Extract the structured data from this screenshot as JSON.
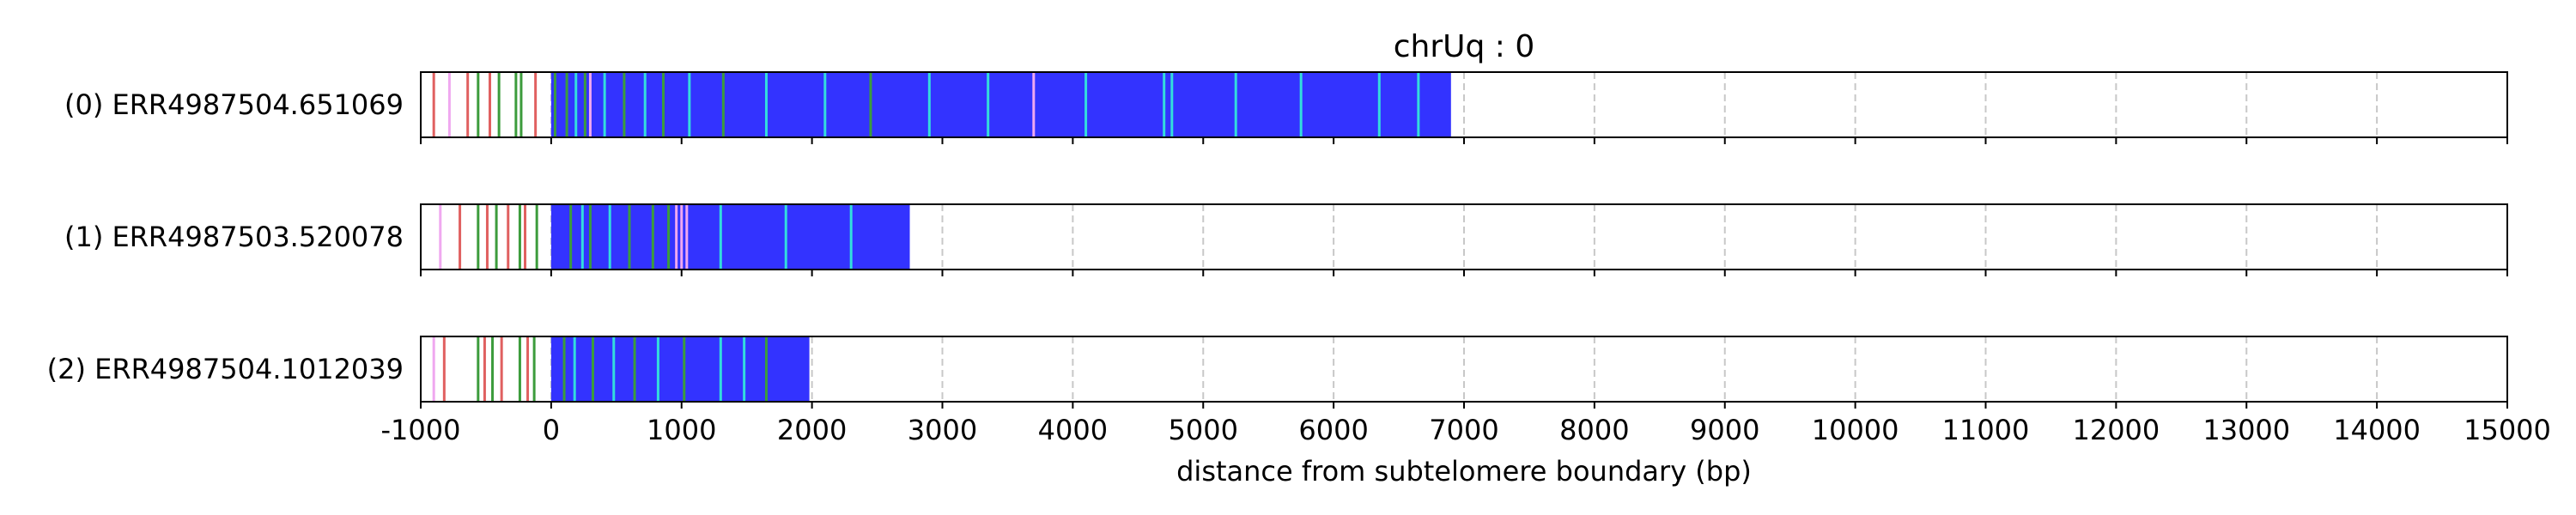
{
  "chart_data": {
    "type": "strip",
    "title": "chrUq : 0",
    "xlabel": "distance from subtelomere boundary (bp)",
    "xlim": [
      -1000,
      15000
    ],
    "x_ticks": [
      -1000,
      0,
      1000,
      2000,
      3000,
      4000,
      5000,
      6000,
      7000,
      8000,
      9000,
      10000,
      11000,
      12000,
      13000,
      14000,
      15000
    ],
    "x_tick_labels": [
      "-1000",
      "0",
      "1000",
      "2000",
      "3000",
      "4000",
      "5000",
      "6000",
      "7000",
      "8000",
      "9000",
      "10000",
      "11000",
      "12000",
      "13000",
      "14000",
      "15000"
    ],
    "grid": "vertical dashed at each x tick",
    "colors": {
      "telomere_repeat": "#3333ff",
      "cyan_variant": "#33dddd",
      "green_variant": "#3c9c3c",
      "red_variant": "#e06060",
      "pink_variant": "#f0a8f0"
    },
    "reads": [
      {
        "label": "(0) ERR4987504.651069",
        "start": 0,
        "end": 6900,
        "marks": [
          {
            "x": -900,
            "color": "#e06060"
          },
          {
            "x": -780,
            "color": "#f0a8f0"
          },
          {
            "x": -640,
            "color": "#e06060"
          },
          {
            "x": -560,
            "color": "#3c9c3c"
          },
          {
            "x": -470,
            "color": "#e06060"
          },
          {
            "x": -400,
            "color": "#3c9c3c"
          },
          {
            "x": -270,
            "color": "#3c9c3c"
          },
          {
            "x": -230,
            "color": "#3c9c3c"
          },
          {
            "x": -120,
            "color": "#e06060"
          },
          {
            "x": 30,
            "color": "#3c9c3c"
          },
          {
            "x": 120,
            "color": "#3c9c3c"
          },
          {
            "x": 190,
            "color": "#33dddd"
          },
          {
            "x": 260,
            "color": "#3c9c3c"
          },
          {
            "x": 300,
            "color": "#f0a8f0"
          },
          {
            "x": 410,
            "color": "#33dddd"
          },
          {
            "x": 560,
            "color": "#3c9c3c"
          },
          {
            "x": 720,
            "color": "#33dddd"
          },
          {
            "x": 860,
            "color": "#3c9c3c"
          },
          {
            "x": 1060,
            "color": "#33dddd"
          },
          {
            "x": 1320,
            "color": "#3c9c3c"
          },
          {
            "x": 1650,
            "color": "#33dddd"
          },
          {
            "x": 2100,
            "color": "#33dddd"
          },
          {
            "x": 2450,
            "color": "#3c9c3c"
          },
          {
            "x": 2900,
            "color": "#33dddd"
          },
          {
            "x": 3350,
            "color": "#33dddd"
          },
          {
            "x": 3700,
            "color": "#f0a8f0"
          },
          {
            "x": 4100,
            "color": "#33dddd"
          },
          {
            "x": 4700,
            "color": "#33dddd"
          },
          {
            "x": 4760,
            "color": "#33dddd"
          },
          {
            "x": 5250,
            "color": "#33dddd"
          },
          {
            "x": 5750,
            "color": "#33dddd"
          },
          {
            "x": 6350,
            "color": "#33dddd"
          },
          {
            "x": 6650,
            "color": "#33dddd"
          }
        ]
      },
      {
        "label": "(1) ERR4987503.520078",
        "start": 0,
        "end": 2750,
        "marks": [
          {
            "x": -850,
            "color": "#f0a8f0"
          },
          {
            "x": -700,
            "color": "#e06060"
          },
          {
            "x": -560,
            "color": "#3c9c3c"
          },
          {
            "x": -490,
            "color": "#e06060"
          },
          {
            "x": -420,
            "color": "#3c9c3c"
          },
          {
            "x": -330,
            "color": "#e06060"
          },
          {
            "x": -240,
            "color": "#3c9c3c"
          },
          {
            "x": -200,
            "color": "#e06060"
          },
          {
            "x": -110,
            "color": "#3c9c3c"
          },
          {
            "x": 150,
            "color": "#3c9c3c"
          },
          {
            "x": 240,
            "color": "#33dddd"
          },
          {
            "x": 300,
            "color": "#3c9c3c"
          },
          {
            "x": 450,
            "color": "#33dddd"
          },
          {
            "x": 600,
            "color": "#3c9c3c"
          },
          {
            "x": 780,
            "color": "#3c9c3c"
          },
          {
            "x": 900,
            "color": "#3c9c3c"
          },
          {
            "x": 960,
            "color": "#f0a8f0"
          },
          {
            "x": 1000,
            "color": "#f0a8f0"
          },
          {
            "x": 1040,
            "color": "#f0a8f0"
          },
          {
            "x": 1300,
            "color": "#33dddd"
          },
          {
            "x": 1800,
            "color": "#33dddd"
          },
          {
            "x": 2300,
            "color": "#33dddd"
          }
        ]
      },
      {
        "label": "(2) ERR4987504.1012039",
        "start": 0,
        "end": 1980,
        "marks": [
          {
            "x": -900,
            "color": "#f0a8f0"
          },
          {
            "x": -820,
            "color": "#e06060"
          },
          {
            "x": -560,
            "color": "#3c9c3c"
          },
          {
            "x": -510,
            "color": "#e06060"
          },
          {
            "x": -450,
            "color": "#3c9c3c"
          },
          {
            "x": -380,
            "color": "#e06060"
          },
          {
            "x": -240,
            "color": "#3c9c3c"
          },
          {
            "x": -180,
            "color": "#e06060"
          },
          {
            "x": -130,
            "color": "#3c9c3c"
          },
          {
            "x": 100,
            "color": "#3c9c3c"
          },
          {
            "x": 180,
            "color": "#33dddd"
          },
          {
            "x": 320,
            "color": "#3c9c3c"
          },
          {
            "x": 480,
            "color": "#33dddd"
          },
          {
            "x": 640,
            "color": "#3c9c3c"
          },
          {
            "x": 820,
            "color": "#33dddd"
          },
          {
            "x": 1020,
            "color": "#3c9c3c"
          },
          {
            "x": 1300,
            "color": "#33dddd"
          },
          {
            "x": 1480,
            "color": "#33dddd"
          },
          {
            "x": 1650,
            "color": "#3c9c3c"
          }
        ]
      }
    ]
  }
}
